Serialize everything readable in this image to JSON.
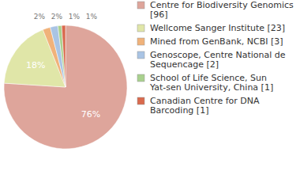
{
  "chart_data": {
    "type": "pie",
    "categories": [
      "Centre for Biodiversity Genomics [96]",
      "Wellcome Sanger Institute [23]",
      "Mined from GenBank, NCBI [3]",
      "Genoscope, Centre National de Sequencage [2]",
      "School of Life Science, Sun Yat-sen University, China [1]",
      "Canadian Centre for DNA Barcoding [1]"
    ],
    "values": [
      76,
      18,
      2,
      2,
      1,
      1
    ],
    "value_labels": [
      "76%",
      "18%",
      "2%",
      "2%",
      "1%",
      "1%"
    ],
    "colors": [
      "#dea59b",
      "#e0e6a8",
      "#f0b27a",
      "#a9c4e4",
      "#a9d18e",
      "#d96a4e"
    ],
    "data_labels": true,
    "legend": "right"
  }
}
